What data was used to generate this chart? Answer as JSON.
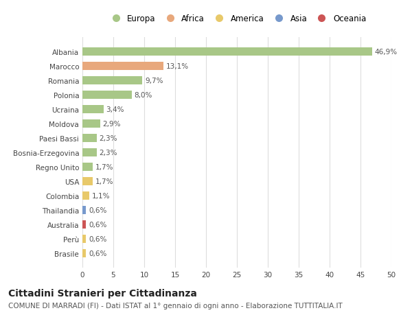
{
  "countries": [
    "Brasile",
    "Perù",
    "Australia",
    "Thailandia",
    "Colombia",
    "USA",
    "Regno Unito",
    "Bosnia-Erzegovina",
    "Paesi Bassi",
    "Moldova",
    "Ucraina",
    "Polonia",
    "Romania",
    "Marocco",
    "Albania"
  ],
  "values": [
    0.6,
    0.6,
    0.6,
    0.6,
    1.1,
    1.7,
    1.7,
    2.3,
    2.3,
    2.9,
    3.4,
    8.0,
    9.7,
    13.1,
    46.9
  ],
  "labels": [
    "0,6%",
    "0,6%",
    "0,6%",
    "0,6%",
    "1,1%",
    "1,7%",
    "1,7%",
    "2,3%",
    "2,3%",
    "2,9%",
    "3,4%",
    "8,0%",
    "9,7%",
    "13,1%",
    "46,9%"
  ],
  "continents": [
    "America",
    "America",
    "Oceania",
    "Asia",
    "America",
    "America",
    "Europa",
    "Europa",
    "Europa",
    "Europa",
    "Europa",
    "Europa",
    "Europa",
    "Africa",
    "Europa"
  ],
  "colors": {
    "Europa": "#a8c787",
    "Africa": "#e8a87c",
    "America": "#e8c96a",
    "Asia": "#7799cc",
    "Oceania": "#cc5555"
  },
  "legend_order": [
    "Europa",
    "Africa",
    "America",
    "Asia",
    "Oceania"
  ],
  "title": "Cittadini Stranieri per Cittadinanza",
  "subtitle": "COMUNE DI MARRADI (FI) - Dati ISTAT al 1° gennaio di ogni anno - Elaborazione TUTTITALIA.IT",
  "xlim": [
    0,
    50
  ],
  "xticks": [
    0,
    5,
    10,
    15,
    20,
    25,
    30,
    35,
    40,
    45,
    50
  ],
  "background_color": "#ffffff",
  "grid_color": "#dddddd",
  "bar_height": 0.55,
  "title_fontsize": 10,
  "subtitle_fontsize": 7.5,
  "label_fontsize": 7.5,
  "ytick_fontsize": 7.5,
  "xtick_fontsize": 7.5,
  "legend_fontsize": 8.5
}
